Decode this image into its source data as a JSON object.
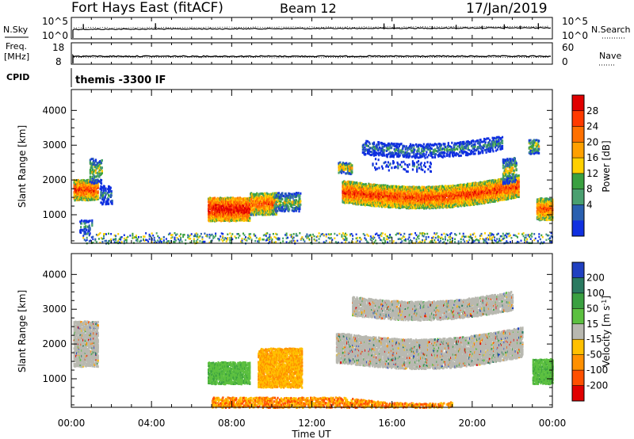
{
  "header": {
    "station": "Fort Hays East (fitACF)",
    "beam": "Beam 12",
    "date": "17/Jan/2019"
  },
  "top_panel_labels": {
    "nsky": "N.Sky",
    "nsearch": "N.Search",
    "nsky_ticks": [
      "10^5",
      "10^0"
    ],
    "nsearch_ticks": [
      "10^5",
      "10^0"
    ],
    "freq": "Freq.",
    "freq_unit": "[MHz]",
    "freq_ticks": [
      "18",
      "8"
    ],
    "nave": "Nave",
    "nave_ticks": [
      "60",
      "0"
    ],
    "cpid": "CPID",
    "cpid_name": "themis -3300 IF"
  },
  "chart_data": [
    {
      "type": "heatmap",
      "panel": "power",
      "ylabel": "Slant Range [km]",
      "xlabel": "",
      "x_ticks": [
        "00:00",
        "04:00",
        "08:00",
        "12:00",
        "16:00",
        "20:00",
        "00:00"
      ],
      "x_range_hours": [
        0,
        24
      ],
      "y_ticks": [
        1000,
        2000,
        3000,
        4000
      ],
      "ylim": [
        180,
        4600
      ],
      "colorbar": {
        "label": "Power [dB]",
        "ticks": [
          "28",
          "24",
          "20",
          "16",
          "12",
          "8",
          "4"
        ],
        "colors": [
          "#e00000",
          "#ff3a00",
          "#ff7000",
          "#ffa000",
          "#ffd000",
          "#3aa040",
          "#4aa070",
          "#2a60b0",
          "#1030e0"
        ]
      }
    },
    {
      "type": "heatmap",
      "panel": "velocity",
      "ylabel": "Slant Range [km]",
      "xlabel": "Time UT",
      "x_ticks": [
        "00:00",
        "04:00",
        "08:00",
        "12:00",
        "16:00",
        "20:00",
        "00:00"
      ],
      "x_range_hours": [
        0,
        24
      ],
      "y_ticks": [
        1000,
        2000,
        3000,
        4000
      ],
      "ylim": [
        180,
        4600
      ],
      "colorbar": {
        "label_main": "Velocity [m s",
        "label_sup": "-1",
        "label_end": "]",
        "ticks": [
          "200",
          "100",
          "50",
          "15",
          "-15",
          "-50",
          "-100",
          "-200"
        ],
        "colors": [
          "#2040c0",
          "#2a7a60",
          "#3aa040",
          "#5cc040",
          "#b8b8b0",
          "#ffc000",
          "#ff9000",
          "#ff5000",
          "#e00000"
        ]
      },
      "regions": [
        {
          "t0": 0.1,
          "t1": 1.3,
          "r0": 1400,
          "r1": 2700,
          "class": "low"
        },
        {
          "t0": 6.8,
          "t1": 8.9,
          "r0": 900,
          "r1": 1500,
          "class": "pos"
        },
        {
          "t0": 9.3,
          "t1": 11.5,
          "r0": 800,
          "r1": 1900,
          "class": "neg"
        },
        {
          "t0": 13.2,
          "t1": 22.5,
          "r0": 1500,
          "r1": 2350,
          "class": "low"
        },
        {
          "t0": 14.0,
          "t1": 22.0,
          "r0": 2900,
          "r1": 3400,
          "class": "low"
        },
        {
          "t0": 23.0,
          "t1": 24.0,
          "r0": 900,
          "r1": 1600,
          "class": "pos"
        },
        {
          "t0": 7.0,
          "t1": 19.0,
          "r0": 200,
          "r1": 500,
          "class": "neg"
        }
      ]
    }
  ]
}
